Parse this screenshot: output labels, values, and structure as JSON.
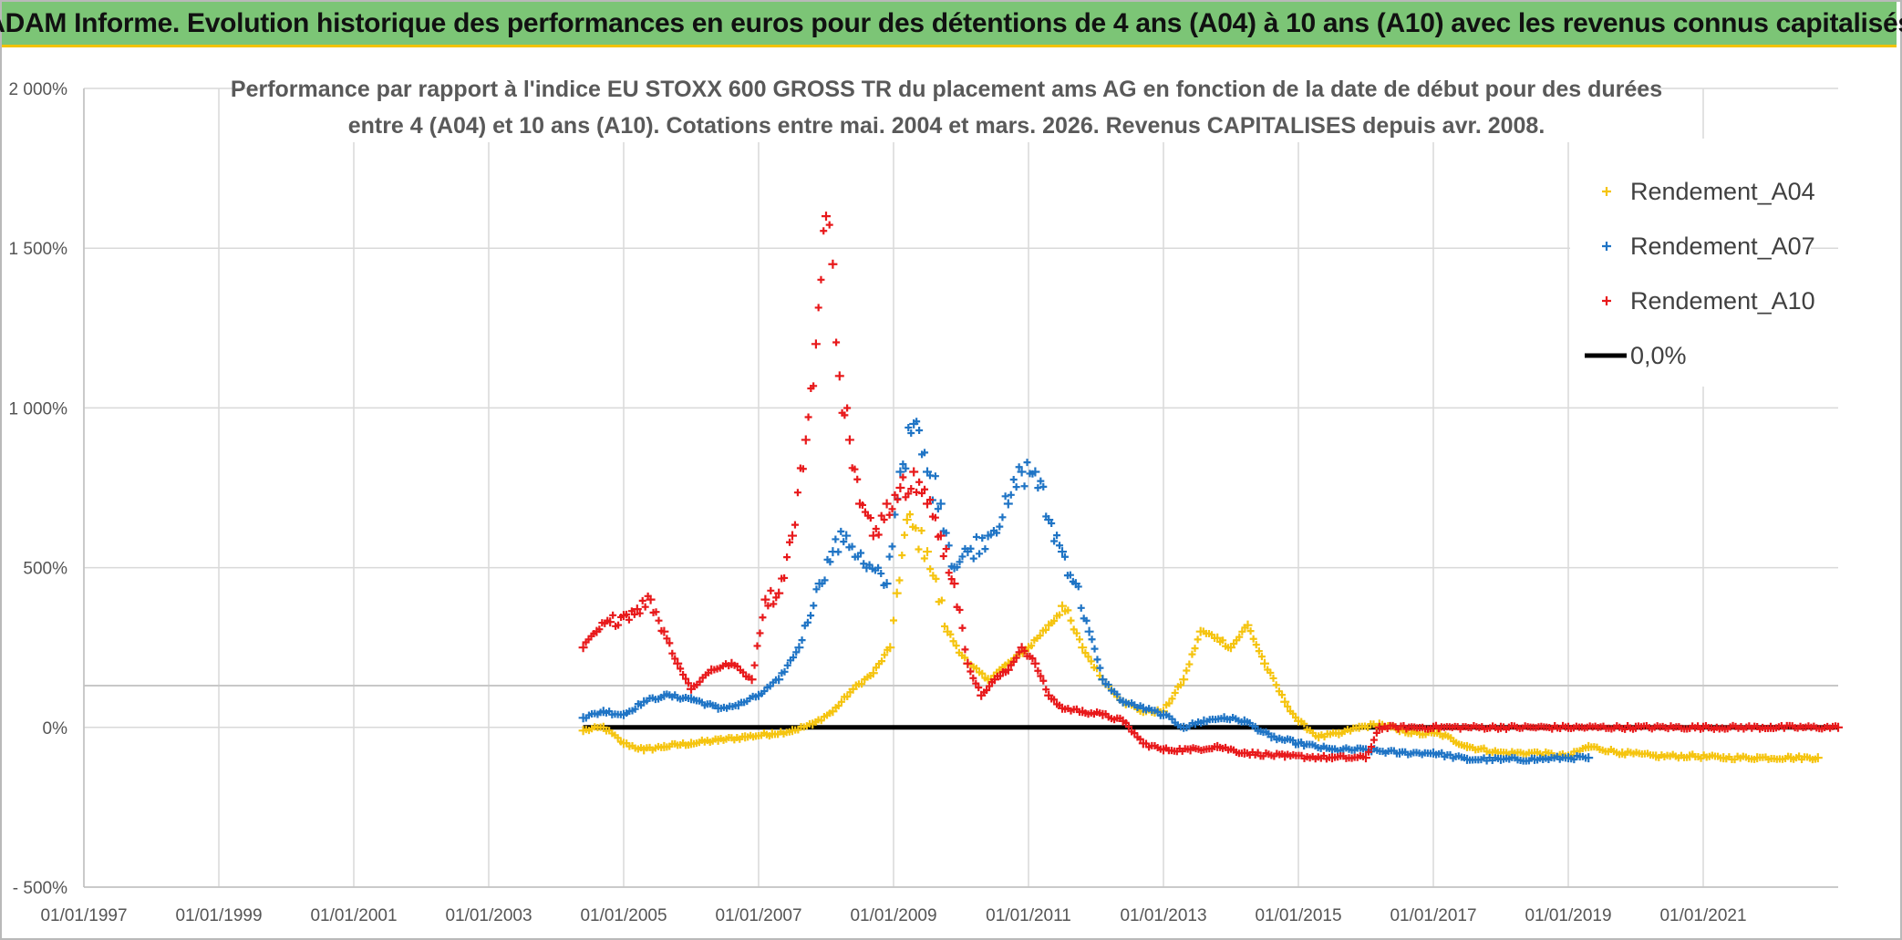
{
  "banner": {
    "title": "ADAM Informe. Evolution historique des performances en euros pour des détentions de 4 ans (A04) à 10 ans (A10) avec les revenus connus capitalisés"
  },
  "colors": {
    "A04": "#f5c40f",
    "A07": "#1f74c5",
    "A10": "#e8191b",
    "zero": "#000000",
    "grid": "#d9d9d9",
    "banner": "#7cc576"
  },
  "chart_data": {
    "type": "scatter",
    "title_line1": "Performance par rapport à l'indice EU STOXX 600 GROSS TR  du placement ams AG en fonction de la date de début pour des durées",
    "title_line2": "entre 4 (A04) et 10 ans (A10). Cotations entre mai. 2004 et mars. 2026. Revenus CAPITALISES depuis avr. 2008.",
    "xlabel": "",
    "ylabel": "",
    "xlim": [
      1997.0,
      2023.0
    ],
    "ylim": [
      -500,
      2000
    ],
    "x_ticks": [
      1997,
      1999,
      2001,
      2003,
      2005,
      2007,
      2009,
      2011,
      2013,
      2015,
      2017,
      2019,
      2021
    ],
    "x_tick_labels": [
      "01/01/1997",
      "01/01/1999",
      "01/01/2001",
      "01/01/2003",
      "01/01/2005",
      "01/01/2007",
      "01/01/2009",
      "01/01/2011",
      "01/01/2013",
      "01/01/2015",
      "01/01/2017",
      "01/01/2019",
      "01/01/2021"
    ],
    "y_ticks": [
      -500,
      0,
      500,
      1000,
      1500,
      2000
    ],
    "y_tick_labels": [
      "- 500%",
      "0%",
      "500%",
      "1 000%",
      "1 500%",
      "2 000%"
    ],
    "legend": [
      "Rendement_A04",
      "Rendement_A07",
      "Rendement_A10",
      "0,0%"
    ],
    "legend_position": "top-right",
    "series": [
      {
        "name": "Rendement_A04",
        "key": "A04",
        "x": [
          2004.4,
          2004.7,
          2005.0,
          2005.3,
          2005.6,
          2006.0,
          2006.4,
          2006.8,
          2007.2,
          2007.5,
          2007.8,
          2008.1,
          2008.4,
          2008.7,
          2008.95,
          2009.05,
          2009.2,
          2009.5,
          2009.8,
          2010.1,
          2010.4,
          2010.7,
          2011.0,
          2011.3,
          2011.5,
          2011.8,
          2012.1,
          2012.4,
          2012.7,
          2013.0,
          2013.3,
          2013.55,
          2013.8,
          2014.0,
          2014.25,
          2014.5,
          2014.8,
          2015.0,
          2015.3,
          2015.6,
          2015.9,
          2016.2,
          2016.5,
          2016.8,
          2017.1,
          2017.5,
          2018.0,
          2018.5,
          2019.0,
          2019.3,
          2019.8,
          2020.3,
          2020.8,
          2021.3,
          2021.8,
          2022.3,
          2022.7
        ],
        "y": [
          -10,
          0,
          -50,
          -70,
          -60,
          -50,
          -40,
          -30,
          -20,
          -10,
          10,
          50,
          120,
          170,
          250,
          420,
          650,
          550,
          300,
          200,
          150,
          200,
          250,
          320,
          380,
          250,
          150,
          80,
          50,
          50,
          150,
          300,
          280,
          250,
          320,
          200,
          80,
          20,
          -30,
          -20,
          0,
          10,
          -10,
          -20,
          -20,
          -60,
          -80,
          -80,
          -90,
          -60,
          -80,
          -90,
          -90,
          -95,
          -95,
          -95,
          -95
        ]
      },
      {
        "name": "Rendement_A07",
        "key": "A07",
        "x": [
          2004.4,
          2004.7,
          2005.0,
          2005.3,
          2005.6,
          2006.0,
          2006.4,
          2006.7,
          2007.0,
          2007.3,
          2007.6,
          2007.9,
          2008.1,
          2008.3,
          2008.6,
          2008.9,
          2009.1,
          2009.3,
          2009.5,
          2009.7,
          2009.9,
          2010.1,
          2010.4,
          2010.7,
          2010.9,
          2011.1,
          2011.3,
          2011.5,
          2011.7,
          2011.9,
          2012.1,
          2012.4,
          2012.7,
          2013.0,
          2013.3,
          2013.6,
          2013.9,
          2014.2,
          2014.6,
          2015.0,
          2015.5,
          2016.0,
          2016.5,
          2017.0,
          2017.5,
          2018.0,
          2018.5,
          2019.0,
          2019.3
        ],
        "y": [
          30,
          50,
          40,
          80,
          100,
          90,
          60,
          70,
          100,
          150,
          250,
          450,
          550,
          600,
          500,
          450,
          800,
          950,
          800,
          700,
          500,
          550,
          600,
          700,
          800,
          800,
          650,
          550,
          450,
          300,
          150,
          80,
          60,
          40,
          0,
          20,
          30,
          20,
          -30,
          -50,
          -70,
          -70,
          -80,
          -80,
          -100,
          -100,
          -100,
          -95,
          -95
        ]
      },
      {
        "name": "Rendement_A10",
        "key": "A10",
        "x": [
          2004.4,
          2004.6,
          2004.8,
          2005.0,
          2005.2,
          2005.4,
          2005.6,
          2005.8,
          2006.0,
          2006.3,
          2006.6,
          2006.9,
          2007.1,
          2007.3,
          2007.5,
          2007.7,
          2007.85,
          2008.0,
          2008.1,
          2008.2,
          2008.35,
          2008.5,
          2008.7,
          2008.9,
          2009.1,
          2009.3,
          2009.5,
          2009.7,
          2009.9,
          2010.1,
          2010.3,
          2010.5,
          2010.7,
          2010.9,
          2011.1,
          2011.3,
          2011.5,
          2011.8,
          2012.1,
          2012.4,
          2012.7,
          2013.0,
          2013.4,
          2013.8,
          2014.2,
          2014.8,
          2015.5,
          2016.0,
          2016.2,
          2017.0,
          2018.0,
          2019.0,
          2020.0,
          2021.0,
          2022.0,
          2023.0
        ],
        "y": [
          250,
          300,
          330,
          350,
          370,
          400,
          300,
          200,
          120,
          180,
          200,
          150,
          400,
          420,
          600,
          900,
          1200,
          1600,
          1450,
          1100,
          900,
          700,
          600,
          700,
          750,
          800,
          700,
          600,
          450,
          200,
          100,
          150,
          180,
          250,
          200,
          100,
          60,
          50,
          40,
          20,
          -50,
          -70,
          -70,
          -60,
          -80,
          -90,
          -95,
          -95,
          0,
          0,
          0,
          0,
          0,
          0,
          0,
          0
        ]
      },
      {
        "name": "0,0%",
        "key": "zero",
        "type": "line",
        "x": [
          2004.4,
          2023.0
        ],
        "y": [
          0,
          0
        ]
      }
    ]
  }
}
